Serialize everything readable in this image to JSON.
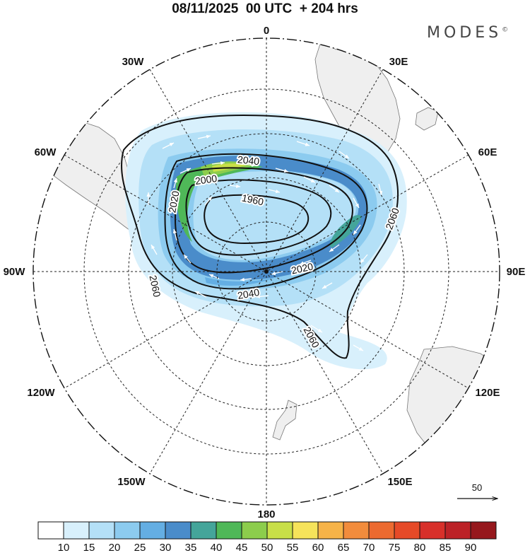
{
  "header": {
    "title": "08/11/2025  00 UTC  + 204 hrs",
    "brand": "MODES",
    "brand_mark": "©"
  },
  "map": {
    "projection": "south-polar-stereographic",
    "longitude_labels": {
      "lon_0": "0",
      "lon_30e": "30E",
      "lon_60e": "60E",
      "lon_90e": "90E",
      "lon_120e": "120E",
      "lon_150e": "150E",
      "lon_180": "180",
      "lon_150w": "150W",
      "lon_120w": "120W",
      "lon_90w": "90W",
      "lon_60w": "60W",
      "lon_30w": "30W"
    },
    "contour_labels": {
      "c1960": "1960",
      "c2000": "2000",
      "c2020a": "2020",
      "c2020b": "2020",
      "c2040a": "2040",
      "c2040b": "2040",
      "c2060a": "2060",
      "c2060b": "2060",
      "c2060c": "2060"
    },
    "reference_vector": {
      "label": "50"
    }
  },
  "colorbar": {
    "colors": [
      "#ffffff",
      "#d8f0fc",
      "#b4e0f7",
      "#8ccbef",
      "#64aee3",
      "#4a8cca",
      "#44a59a",
      "#4fb858",
      "#8ccd4c",
      "#c8df48",
      "#f6e35a",
      "#f6b348",
      "#f28c3c",
      "#ec6a30",
      "#e64a28",
      "#d8302a",
      "#bc2227",
      "#96181d"
    ],
    "labels": [
      "10",
      "15",
      "20",
      "25",
      "30",
      "35",
      "40",
      "45",
      "50",
      "55",
      "60",
      "65",
      "70",
      "75",
      "80",
      "85",
      "90"
    ]
  }
}
